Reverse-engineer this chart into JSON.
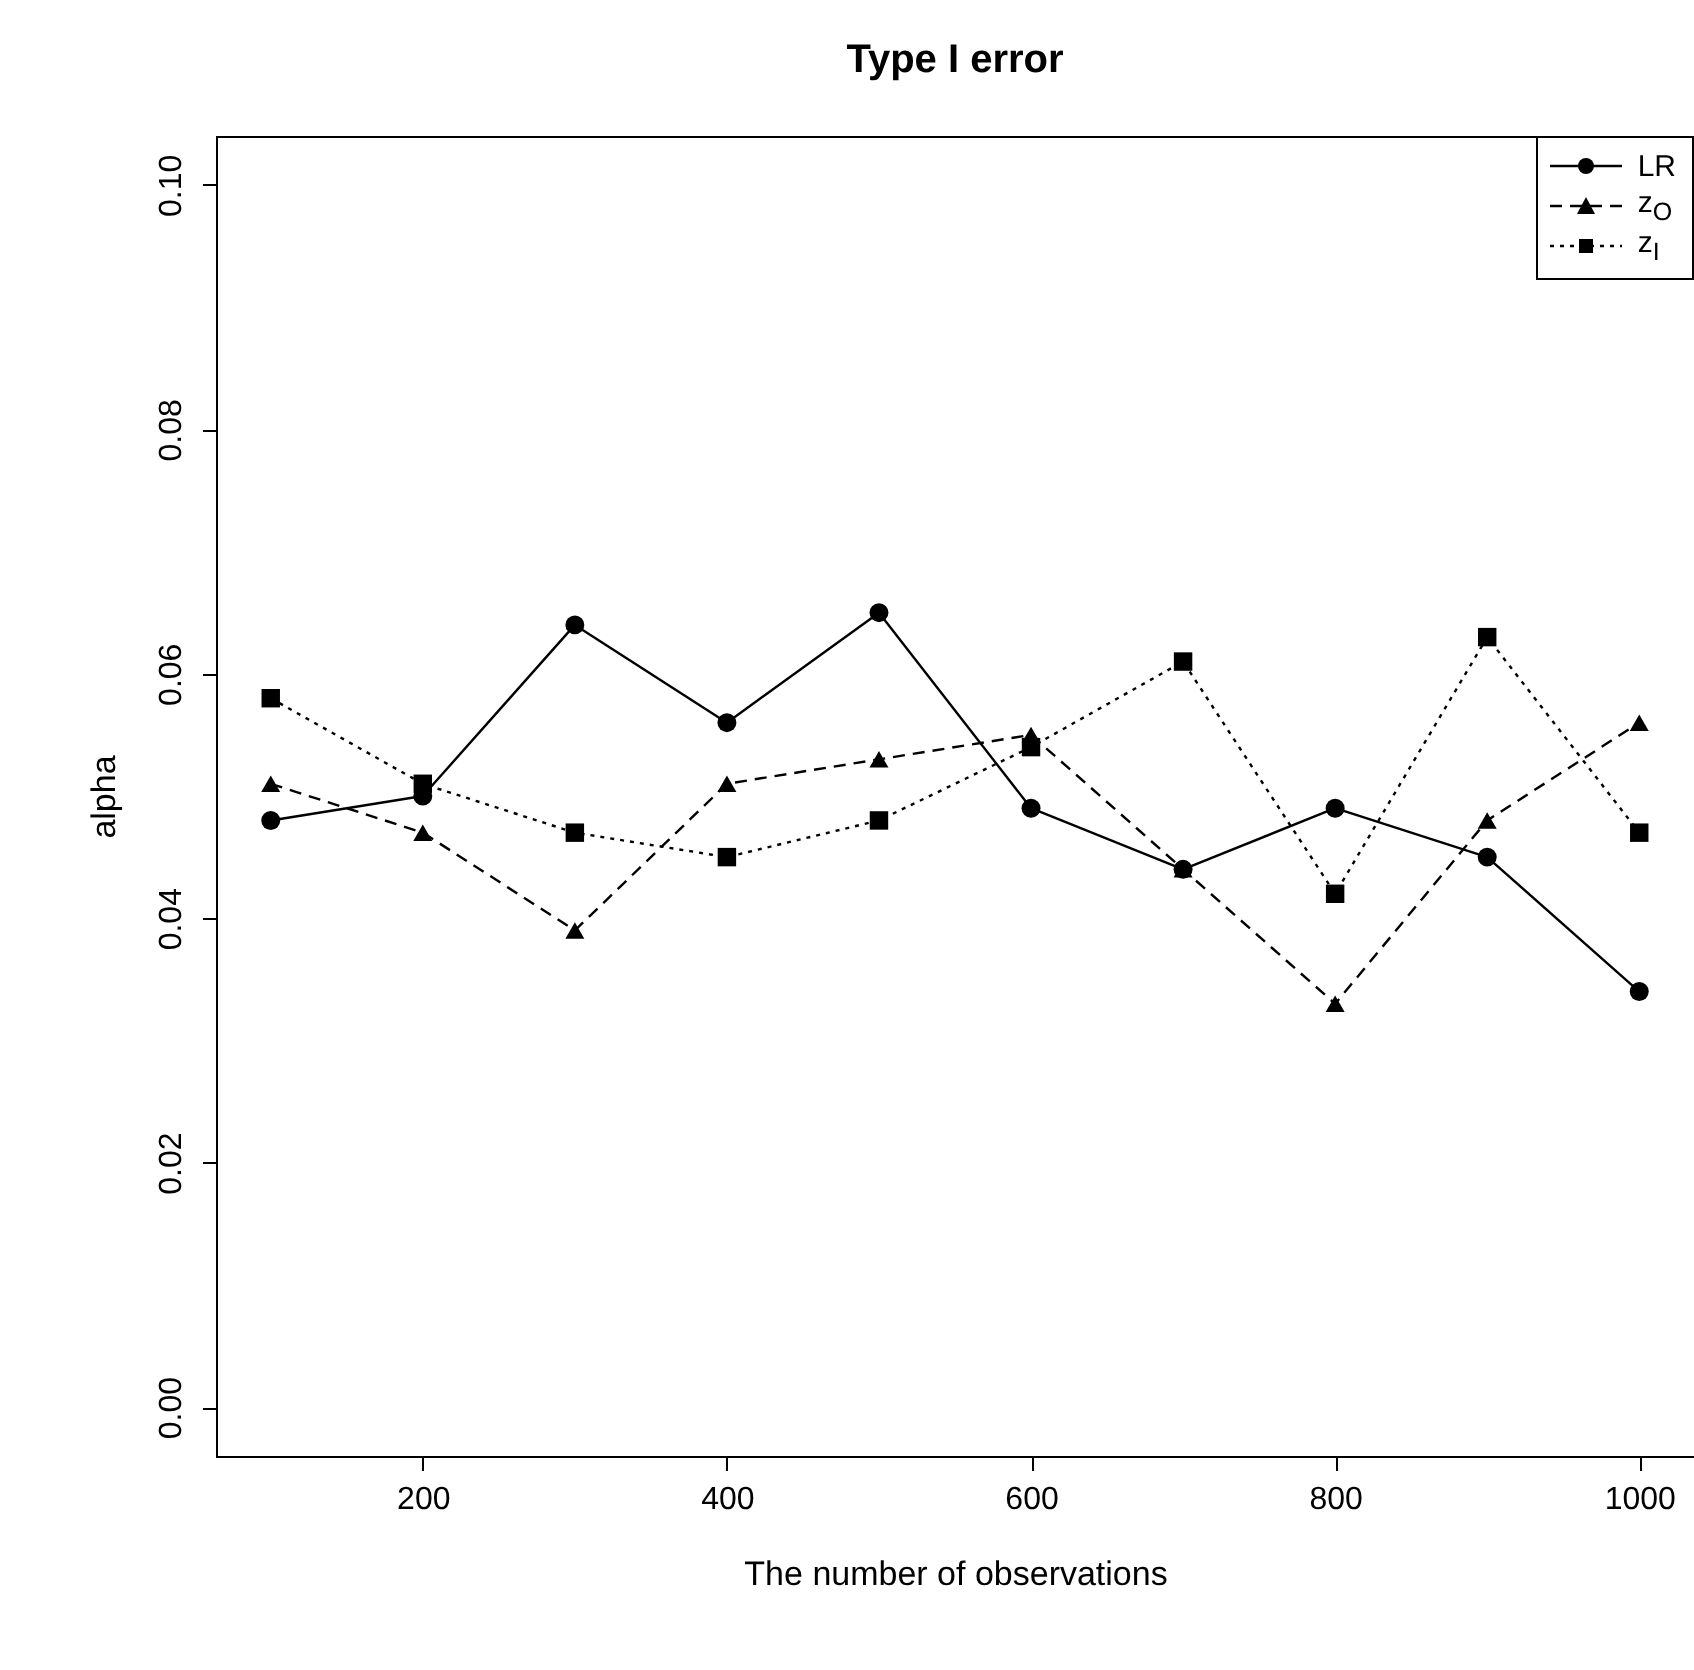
{
  "chart_data": {
    "type": "line",
    "title": "Type I error",
    "xlabel": "The number of observations",
    "ylabel": "alpha",
    "x": [
      100,
      200,
      300,
      400,
      500,
      600,
      700,
      800,
      900,
      1000
    ],
    "series": [
      {
        "name": "LR",
        "color": "#000000",
        "marker": "circle",
        "line_style": "solid",
        "values": [
          0.048,
          0.05,
          0.064,
          0.056,
          0.065,
          0.049,
          0.044,
          0.049,
          0.045,
          0.034
        ]
      },
      {
        "name": "z$_{O}$",
        "color": "#000000",
        "marker": "triangle",
        "line_style": "dashed",
        "values": [
          0.051,
          0.047,
          0.039,
          0.051,
          0.053,
          0.055,
          0.044,
          0.033,
          0.048,
          0.056
        ]
      },
      {
        "name": "z$_{I}$",
        "color": "#000000",
        "marker": "square",
        "line_style": "dotted",
        "values": [
          0.058,
          0.051,
          0.047,
          0.045,
          0.048,
          0.054,
          0.061,
          0.042,
          0.063,
          0.047
        ]
      }
    ],
    "xlim": [
      64,
      1036
    ],
    "xticks": [
      200,
      400,
      600,
      800,
      1000
    ],
    "ylim": [
      -0.004,
      0.104
    ],
    "yticks": [
      {
        "value": 0,
        "label": "0.00"
      },
      {
        "value": 0.02,
        "label": "0.02"
      },
      {
        "value": 0.04,
        "label": "0.04"
      },
      {
        "value": 0.06,
        "label": "0.06"
      },
      {
        "value": 0.08,
        "label": "0.08"
      },
      {
        "value": 0.1,
        "label": "0.10"
      }
    ],
    "grid": false,
    "legend": "top right"
  }
}
